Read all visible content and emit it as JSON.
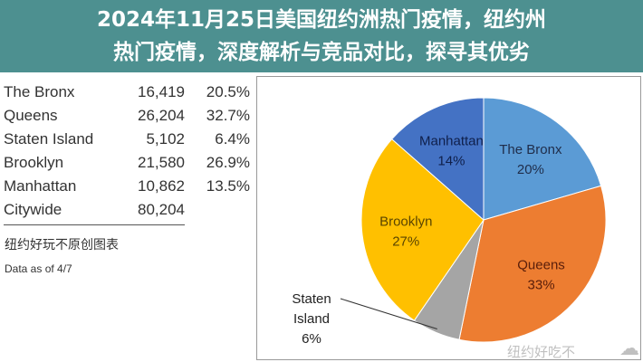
{
  "table": {
    "rows": [
      {
        "name": "The Bronx",
        "count": "16,419",
        "pct": "20.5%"
      },
      {
        "name": "Queens",
        "count": "26,204",
        "pct": "32.7%"
      },
      {
        "name": "Staten Island",
        "count": "5,102",
        "pct": "6.4%"
      },
      {
        "name": "Brooklyn",
        "count": "21,580",
        "pct": "26.9%"
      },
      {
        "name": "Manhattan",
        "count": "10,862",
        "pct": "13.5%"
      },
      {
        "name": "Citywide",
        "count": "80,204",
        "pct": ""
      }
    ],
    "source_note": "纽约好玩不原创图表",
    "date_note": "Data as of 4/7"
  },
  "chart_data": {
    "type": "pie",
    "categories": [
      "The Bronx",
      "Queens",
      "Staten Island",
      "Brooklyn",
      "Manhattan"
    ],
    "values": [
      20.5,
      32.7,
      6.4,
      26.9,
      13.5
    ],
    "labels": [
      "20%",
      "33%",
      "6%",
      "27%",
      "14%"
    ],
    "colors": [
      "#5b9bd5",
      "#ed7d31",
      "#a5a5a5",
      "#ffc000",
      "#4472c4"
    ]
  },
  "overlay": {
    "title_line1": "2024年11月25日美国纽约洲热门疫情，纽约州",
    "title_line2": "热门疫情，深度解析与竞品对比，探寻其优劣",
    "band_color": "#3e8787"
  },
  "watermark": {
    "text": "纽约好吃不",
    "icon": "weibo-icon",
    "icon2": "wechat-icon"
  }
}
